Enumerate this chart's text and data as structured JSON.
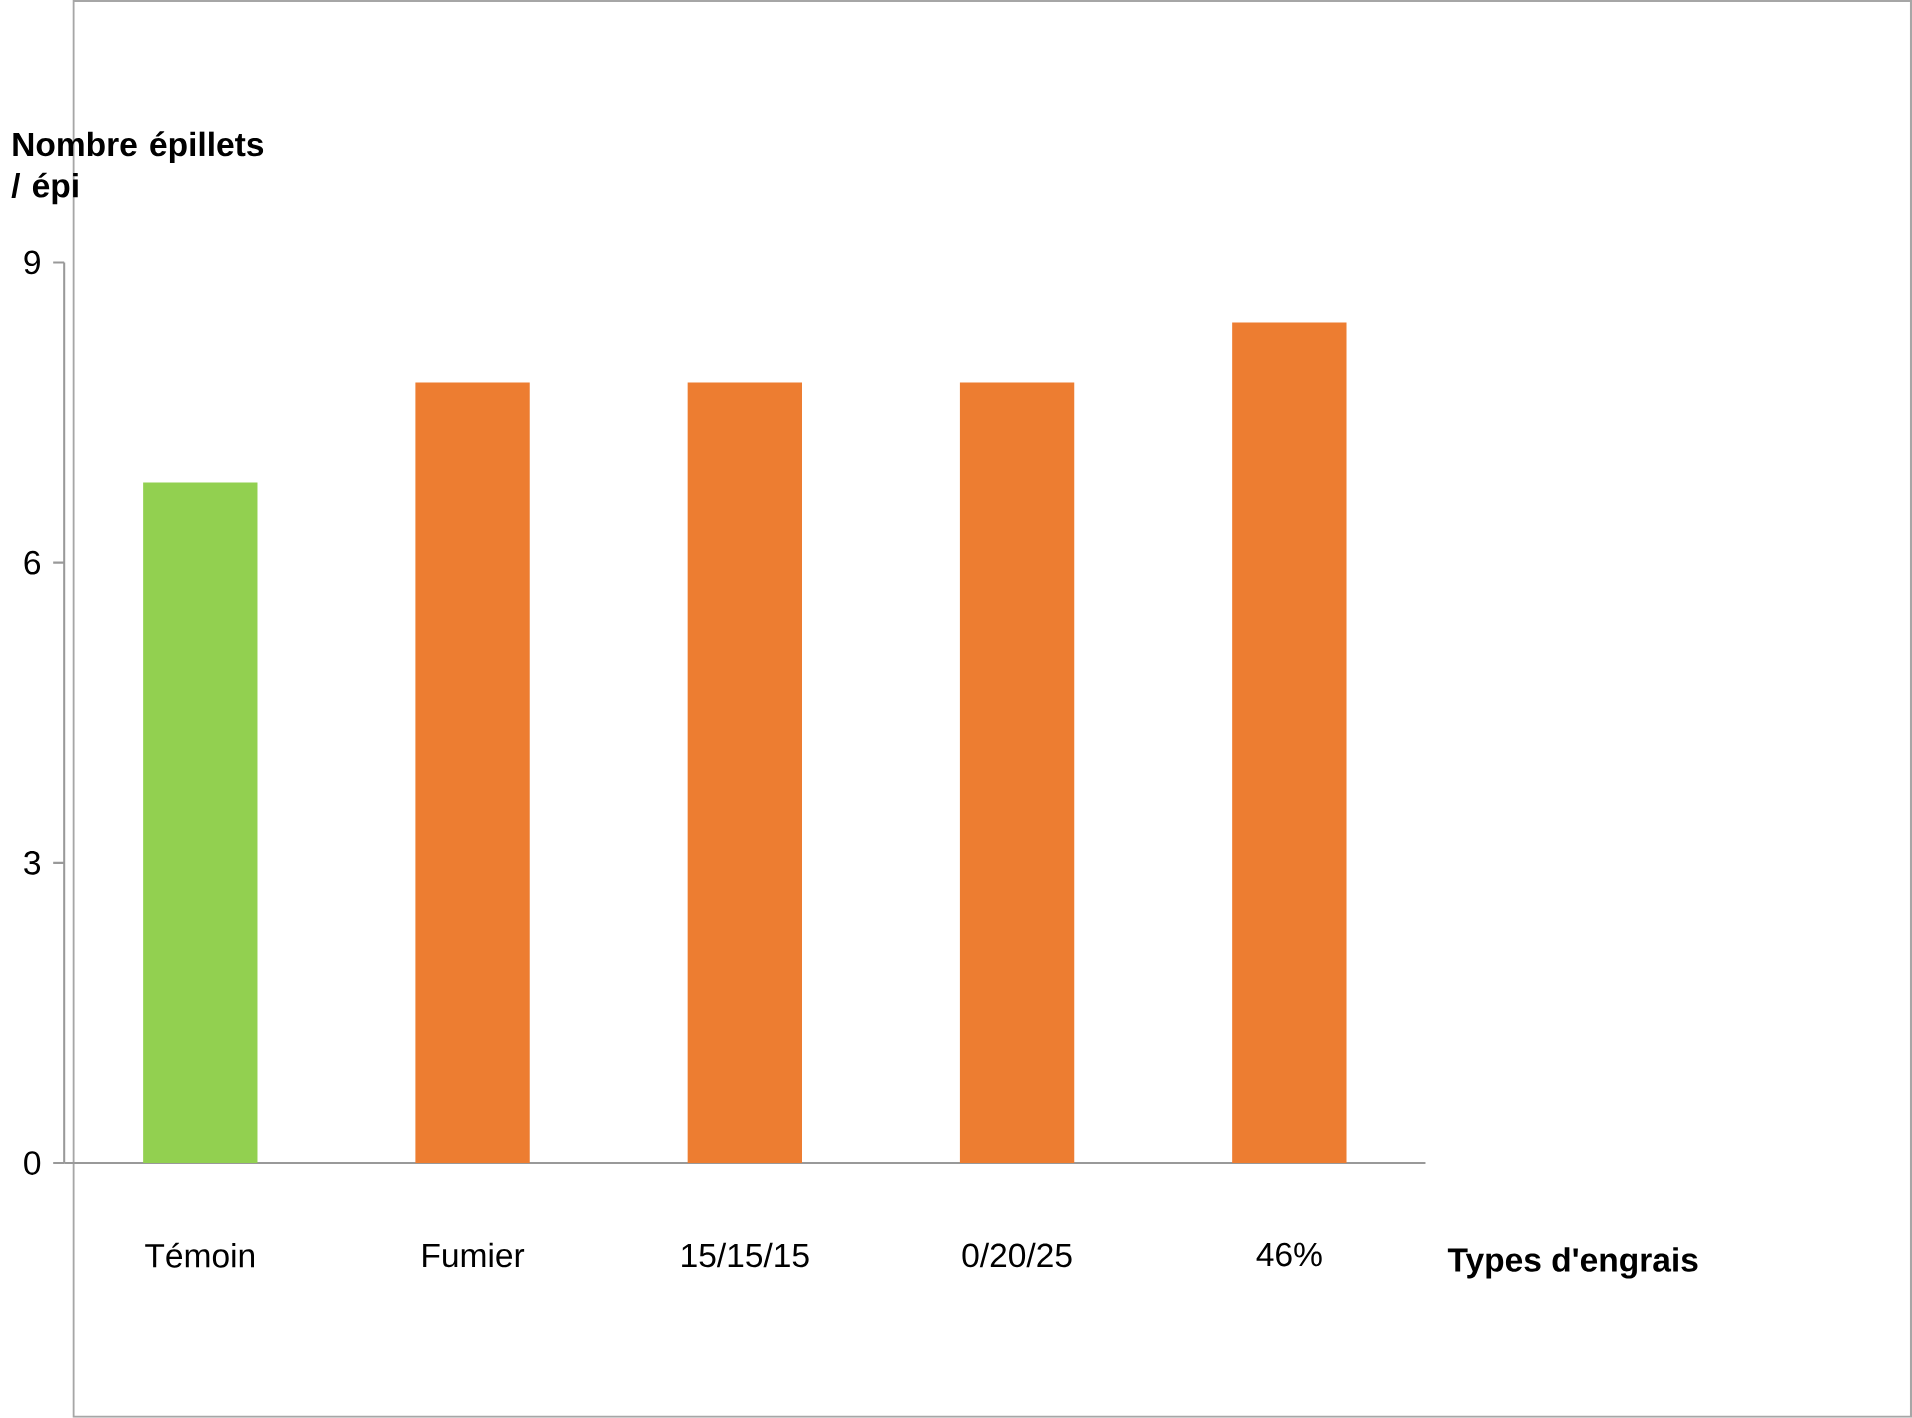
{
  "chart_data": {
    "type": "bar",
    "ylabel": "Nombre épillets / épi",
    "xlabel": "Types d'engrais",
    "categories": [
      "Témoin",
      "Fumier",
      "15/15/15",
      "0/20/25",
      "46%"
    ],
    "values": [
      6.8,
      7.8,
      7.8,
      7.8,
      8.4
    ],
    "colors": [
      "#92d050",
      "#ed7d31",
      "#ed7d31",
      "#ed7d31",
      "#ed7d31"
    ],
    "ylim": [
      0,
      9
    ],
    "yticks": [
      0,
      3,
      6,
      9
    ]
  }
}
